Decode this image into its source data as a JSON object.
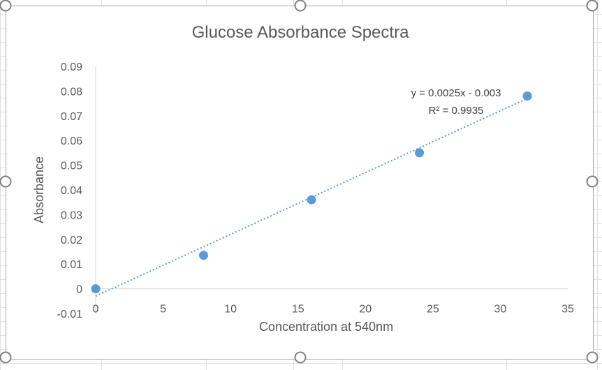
{
  "chart_data": {
    "type": "scatter",
    "title": "Glucose Absorbance Spectra",
    "xlabel": "Concentration at 540nm",
    "ylabel": "Absorbance",
    "xlim": [
      0,
      35
    ],
    "ylim": [
      -0.01,
      0.09
    ],
    "xticks": [
      "0",
      "5",
      "10",
      "15",
      "20",
      "25",
      "30",
      "35"
    ],
    "yticks": [
      "-0.01",
      "0",
      "0.01",
      "0.02",
      "0.03",
      "0.04",
      "0.05",
      "0.06",
      "0.07",
      "0.08",
      "0.09"
    ],
    "grid": false,
    "series": [
      {
        "x": [
          0,
          8,
          16,
          24,
          32
        ],
        "y": [
          0.0,
          0.0135,
          0.036,
          0.055,
          0.078
        ],
        "color": "#5b9bd5"
      }
    ],
    "trendline": {
      "type": "linear",
      "slope": 0.0025,
      "intercept": -0.003,
      "x_range": [
        0,
        32
      ],
      "color": "#5b9bd5",
      "style": "dotted",
      "equation_label": "y = 0.0025x - 0.003",
      "r2_label": "R² = 0.9935"
    }
  }
}
